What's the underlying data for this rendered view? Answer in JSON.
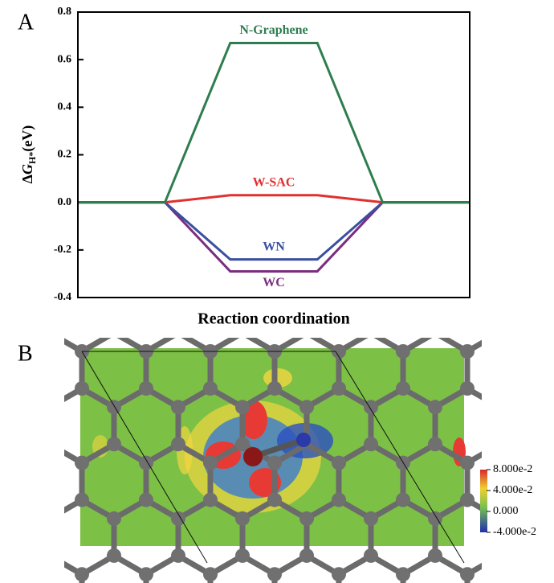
{
  "chart_data": {
    "type": "line",
    "panel": "A",
    "ylabel": [
      "Δ",
      "G",
      "H*",
      "(eV)"
    ],
    "xlabel": "Reaction coordination",
    "x": [
      0,
      1,
      1.75,
      2.75,
      3.5,
      4.5
    ],
    "xlim": [
      0,
      4.5
    ],
    "ylim": [
      -0.4,
      0.8
    ],
    "yticks": [
      -0.4,
      -0.2,
      {
        "value": 0,
        "label": "0.0"
      },
      0.2,
      0.4,
      0.6,
      0.8
    ],
    "series": [
      {
        "name": "N-Graphene",
        "color": "#2e7d4f",
        "values": [
          0,
          0,
          0.67,
          0.67,
          0,
          0
        ]
      },
      {
        "name": "W-SAC",
        "color": "#e03030",
        "values": [
          0,
          0,
          0.03,
          0.03,
          0,
          0
        ]
      },
      {
        "name": "WN",
        "color": "#3a4fa0",
        "values": [
          0,
          0,
          -0.24,
          -0.24,
          0,
          0
        ]
      },
      {
        "name": "WC",
        "color": "#7a2e80",
        "values": [
          0,
          0,
          -0.29,
          -0.29,
          0,
          0
        ]
      }
    ]
  },
  "panel_b": {
    "label": "B",
    "colorbar": {
      "lim": [
        -0.04,
        0.08
      ],
      "ticks": [
        {
          "value": 0.08,
          "label": "8.000e-2"
        },
        {
          "value": 0.04,
          "label": "4.000e-2"
        },
        {
          "value": 0,
          "label": "0.000"
        },
        {
          "value": -0.04,
          "label": "-4.000e-2"
        }
      ]
    }
  }
}
